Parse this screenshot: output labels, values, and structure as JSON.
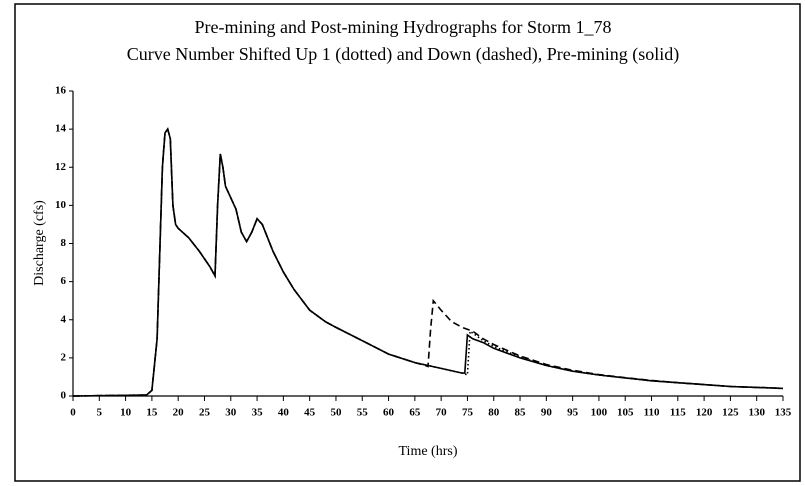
{
  "chart_data": {
    "type": "line",
    "title": "Pre-mining and Post-mining Hydrographs for Storm 1_78",
    "subtitle": "Curve Number Shifted Up 1 (dotted) and Down (dashed), Pre-mining (solid)",
    "x_label": "Time (hrs)",
    "y_label": "Discharge (cfs)",
    "xlim": [
      0,
      135
    ],
    "ylim": [
      0,
      16
    ],
    "xticks": [
      0,
      5,
      10,
      15,
      20,
      25,
      30,
      35,
      40,
      45,
      50,
      55,
      60,
      65,
      70,
      75,
      80,
      85,
      90,
      95,
      100,
      105,
      110,
      115,
      120,
      125,
      130,
      135
    ],
    "yticks": [
      0,
      2,
      4,
      6,
      8,
      10,
      12,
      14,
      16
    ],
    "series": [
      {
        "name": "Pre-mining",
        "color": "#000000",
        "dash": "solid",
        "x": [
          0,
          14,
          15,
          16,
          17,
          17.5,
          18,
          18.5,
          19,
          19.5,
          20,
          22,
          24,
          26,
          27,
          27.5,
          28,
          28.5,
          29,
          31,
          32,
          33,
          34,
          35,
          36,
          38,
          40,
          42,
          45,
          48,
          50,
          55,
          60,
          65,
          70,
          74,
          74.5,
          75,
          76,
          78,
          80,
          85,
          90,
          95,
          100,
          105,
          110,
          115,
          120,
          125,
          130,
          135
        ],
        "values": [
          0,
          0.05,
          0.3,
          3,
          12,
          13.8,
          14,
          13.5,
          10,
          9,
          8.8,
          8.3,
          7.6,
          6.8,
          6.3,
          10,
          12.7,
          12,
          11,
          9.8,
          8.6,
          8.1,
          8.6,
          9.3,
          9,
          7.6,
          6.5,
          5.6,
          4.5,
          3.9,
          3.6,
          2.9,
          2.2,
          1.75,
          1.45,
          1.2,
          1.2,
          3.2,
          3,
          2.8,
          2.5,
          2,
          1.6,
          1.3,
          1.1,
          0.95,
          0.8,
          0.7,
          0.6,
          0.5,
          0.45,
          0.4
        ]
      },
      {
        "name": "Shifted Up 1",
        "color": "#000000",
        "dash": "dotted",
        "x": [
          0,
          14,
          15,
          16,
          17,
          17.5,
          18,
          18.5,
          19,
          19.5,
          20,
          22,
          24,
          26,
          27,
          27.5,
          28,
          28.5,
          29,
          31,
          32,
          33,
          34,
          35,
          36,
          38,
          40,
          42,
          45,
          48,
          50,
          55,
          60,
          65,
          70,
          74,
          75,
          75.5,
          76,
          78,
          80,
          85,
          90,
          95,
          100,
          105,
          110,
          115,
          120,
          125,
          130,
          135
        ],
        "values": [
          0,
          0.05,
          0.3,
          3,
          12,
          13.8,
          14,
          13.5,
          10,
          9,
          8.8,
          8.3,
          7.6,
          6.8,
          6.3,
          10,
          12.7,
          12,
          11,
          9.8,
          8.6,
          8.1,
          8.6,
          9.3,
          9,
          7.6,
          6.5,
          5.6,
          4.5,
          3.9,
          3.6,
          2.9,
          2.2,
          1.75,
          1.45,
          1.2,
          1.1,
          3.4,
          3.3,
          2.9,
          2.6,
          2.05,
          1.6,
          1.3,
          1.1,
          0.95,
          0.8,
          0.7,
          0.6,
          0.5,
          0.45,
          0.4
        ]
      },
      {
        "name": "Shifted Down",
        "color": "#000000",
        "dash": "dashed",
        "x": [
          0,
          14,
          15,
          16,
          17,
          17.5,
          18,
          18.5,
          19,
          19.5,
          20,
          22,
          24,
          26,
          27,
          27.5,
          28,
          28.5,
          29,
          31,
          32,
          33,
          34,
          35,
          36,
          38,
          40,
          42,
          45,
          48,
          50,
          55,
          60,
          65,
          67,
          67.5,
          68,
          68.5,
          70,
          72,
          74,
          76,
          78,
          80,
          85,
          90,
          95,
          100,
          105,
          110,
          115,
          120,
          125,
          130,
          135
        ],
        "values": [
          0,
          0.05,
          0.3,
          3,
          12,
          13.8,
          14,
          13.5,
          10,
          9,
          8.8,
          8.3,
          7.6,
          6.8,
          6.3,
          10,
          12.7,
          12,
          11,
          9.8,
          8.6,
          8.1,
          8.6,
          9.3,
          9,
          7.6,
          6.5,
          5.6,
          4.5,
          3.9,
          3.6,
          2.9,
          2.2,
          1.75,
          1.6,
          1.55,
          3.5,
          5,
          4.5,
          3.9,
          3.6,
          3.4,
          3,
          2.7,
          2.1,
          1.65,
          1.35,
          1.12,
          0.96,
          0.82,
          0.7,
          0.6,
          0.5,
          0.45,
          0.4
        ]
      }
    ]
  }
}
